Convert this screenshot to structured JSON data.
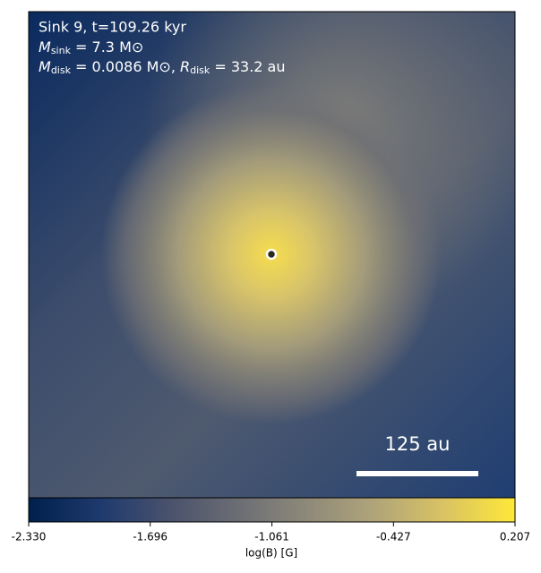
{
  "chart_data": {
    "type": "image",
    "annotations": [
      {
        "text": "Sink 9, t=109.26 kyr"
      },
      {
        "symbol": "M",
        "sub": "sink",
        "text": " = 7.3 M⊙"
      },
      {
        "symbol": "M",
        "sub": "disk",
        "text": " = 0.0086 M⊙, ",
        "symbol2": "R",
        "sub2": "disk",
        "text2": " = 33.2 au"
      }
    ],
    "scale_bar": "125 au",
    "colorbar": {
      "label": "log(B) [G]",
      "colormap": "cividis",
      "lim": [
        -2.33,
        0.207
      ],
      "ticks": [
        {
          "value": -2.33,
          "label": "-2.330"
        },
        -1.696,
        -1.061,
        -0.427,
        0.207
      ]
    }
  }
}
